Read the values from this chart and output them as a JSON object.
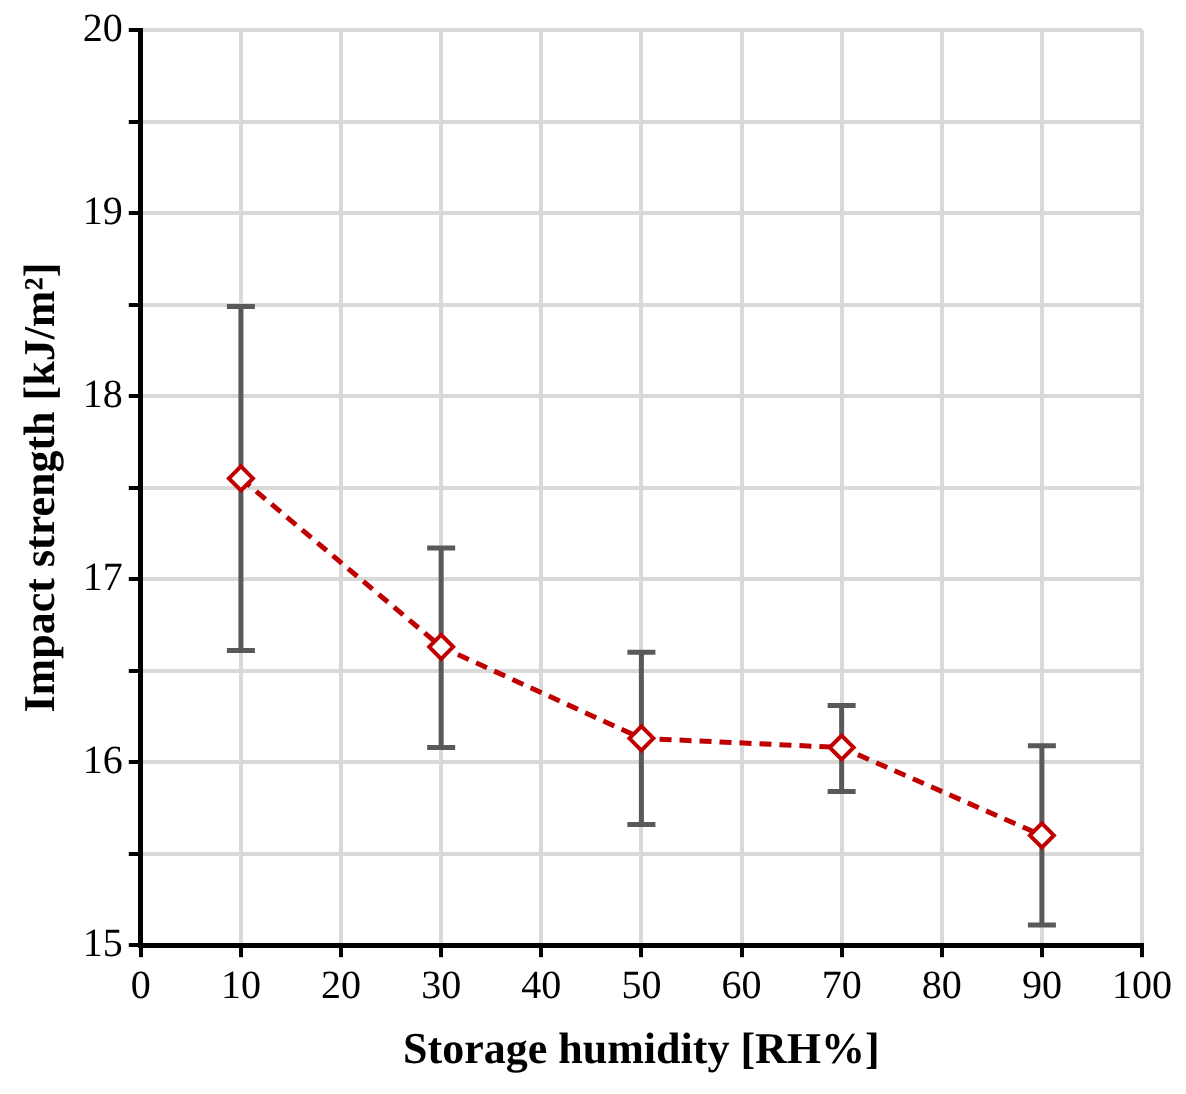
{
  "chart_data": {
    "type": "line",
    "xlabel": "Storage humidity [RH%]",
    "ylabel": "Impact strength [kJ/m²]",
    "x": [
      10,
      30,
      50,
      70,
      90
    ],
    "series": [
      {
        "color": "#c00000",
        "values": [
          17.55,
          16.63,
          16.13,
          16.08,
          15.6
        ],
        "errors": [
          [
            16.61,
            18.49
          ],
          [
            16.08,
            17.17
          ],
          [
            15.66,
            16.6
          ],
          [
            15.84,
            16.31
          ],
          [
            15.11,
            16.09
          ]
        ]
      }
    ],
    "xlim": [
      0,
      100
    ],
    "xticks": [
      0,
      10,
      20,
      30,
      40,
      50,
      60,
      70,
      80,
      90,
      100
    ],
    "ylim": [
      15,
      20
    ],
    "yticks": [
      15,
      {
        "value": 15.5,
        "label": null
      },
      16,
      {
        "value": 16.5,
        "label": null
      },
      17,
      {
        "value": 17.5,
        "label": null
      },
      18,
      {
        "value": 18.5,
        "label": null
      },
      19,
      {
        "value": 19.5,
        "label": null
      },
      20
    ],
    "grid": true,
    "legend": false,
    "marker": "diamond",
    "line_style": "dashed"
  }
}
